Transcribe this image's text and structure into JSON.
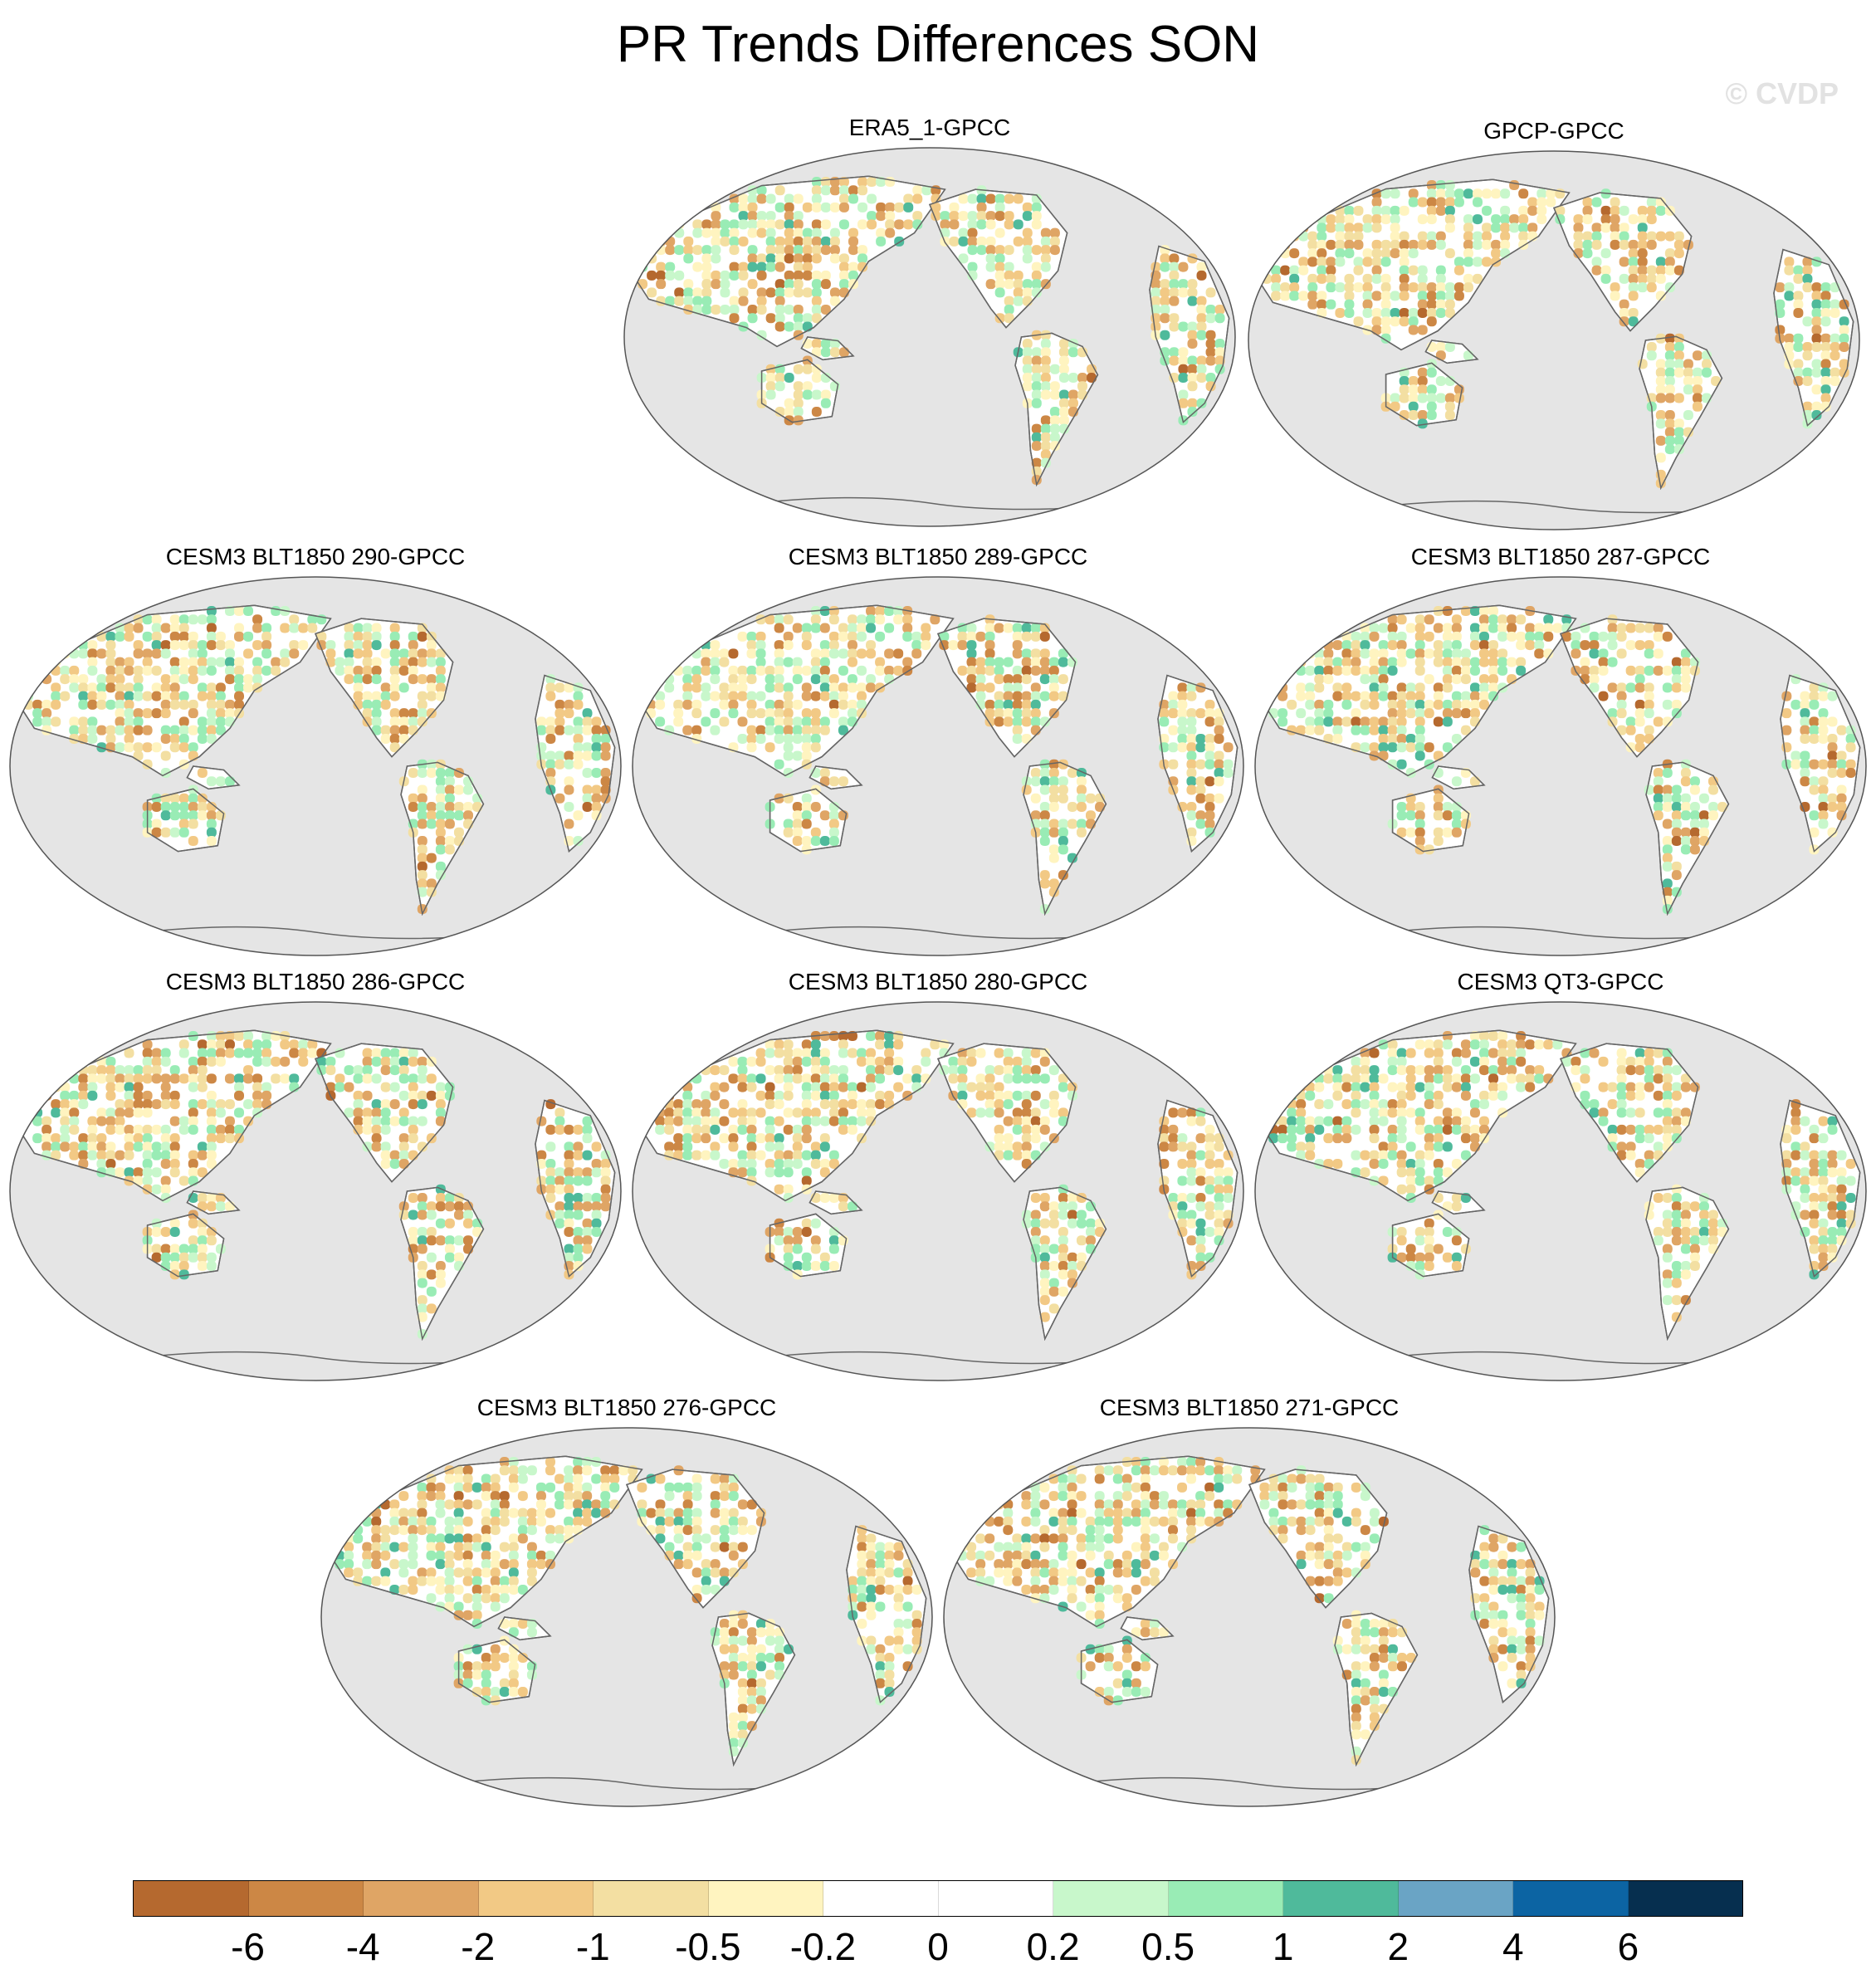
{
  "title": "PR Trends Differences SON",
  "watermark": "© CVDP",
  "panels": [
    {
      "label": "ERA5_1-GPCC",
      "seed": 11
    },
    {
      "label": "GPCP-GPCC",
      "seed": 23
    },
    {
      "label": "CESM3 BLT1850 290-GPCC",
      "seed": 37
    },
    {
      "label": "CESM3 BLT1850 289-GPCC",
      "seed": 41
    },
    {
      "label": "CESM3 BLT1850 287-GPCC",
      "seed": 53
    },
    {
      "label": "CESM3 BLT1850 286-GPCC",
      "seed": 67
    },
    {
      "label": "CESM3 BLT1850 280-GPCC",
      "seed": 71
    },
    {
      "label": "CESM3 QT3-GPCC",
      "seed": 83
    },
    {
      "label": "CESM3 BLT1850 276-GPCC",
      "seed": 97
    },
    {
      "label": "CESM3 BLT1850 271-GPCC",
      "seed": 101
    }
  ],
  "colorbar": {
    "colors": [
      "#b5692f",
      "#cc8745",
      "#dfa565",
      "#f2c985",
      "#f3dfa2",
      "#fff4c0",
      "#ffffff",
      "#ffffff",
      "#c8f7cb",
      "#99ecb5",
      "#4fba9b",
      "#6aa4c5",
      "#0c64a3",
      "#062f4f"
    ],
    "labels": [
      "-6",
      "-4",
      "-2",
      "-1",
      "-0.5",
      "-0.2",
      "0",
      "0.2",
      "0.5",
      "1",
      "2",
      "4",
      "6"
    ]
  }
}
